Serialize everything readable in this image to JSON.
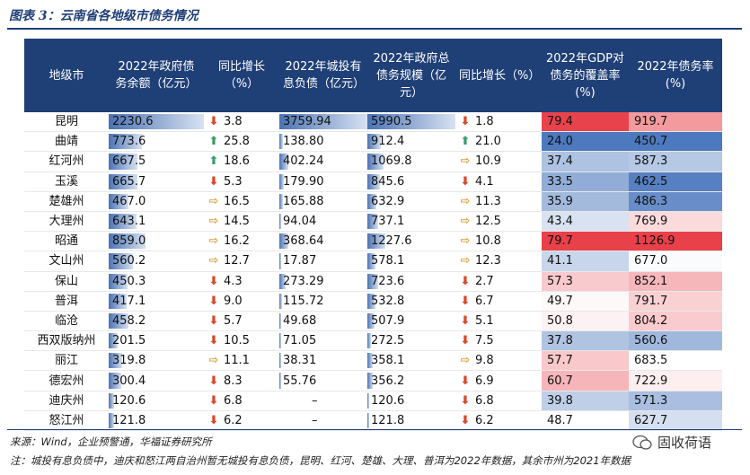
{
  "title": "图表 3：云南省各地级市债务情况",
  "headers": {
    "city": "地级市",
    "gov_debt": "2022年政府债务余额（亿元）",
    "gov_yoy": "同比增长（%）",
    "lgfv": "2022年城投有息负债（亿元）",
    "total": "2022年政府总债务规模（亿元）",
    "total_yoy": "同比增长（%）",
    "coverage": "2022年GDP对债务的覆盖率(%)",
    "ratio": "2022年债务率(%)"
  },
  "rows": [
    {
      "city": "昆明",
      "gov_debt": "2230.6",
      "gov_yoy": "3.8",
      "gov_dir": "down",
      "lgfv": "3759.94",
      "total": "5990.5",
      "total_yoy": "1.8",
      "total_dir": "down",
      "coverage": "79.4",
      "ratio": "919.7"
    },
    {
      "city": "曲靖",
      "gov_debt": "773.6",
      "gov_yoy": "25.8",
      "gov_dir": "up",
      "lgfv": "138.80",
      "total": "912.4",
      "total_yoy": "21.0",
      "total_dir": "up",
      "coverage": "24.0",
      "ratio": "450.7"
    },
    {
      "city": "红河州",
      "gov_debt": "667.5",
      "gov_yoy": "18.6",
      "gov_dir": "up",
      "lgfv": "402.24",
      "total": "1069.8",
      "total_yoy": "10.9",
      "total_dir": "flat",
      "coverage": "37.4",
      "ratio": "587.3"
    },
    {
      "city": "玉溪",
      "gov_debt": "665.7",
      "gov_yoy": "5.3",
      "gov_dir": "down",
      "lgfv": "179.90",
      "total": "845.6",
      "total_yoy": "4.1",
      "total_dir": "down",
      "coverage": "33.5",
      "ratio": "462.5"
    },
    {
      "city": "楚雄州",
      "gov_debt": "467.0",
      "gov_yoy": "16.5",
      "gov_dir": "flat",
      "lgfv": "165.88",
      "total": "632.9",
      "total_yoy": "11.3",
      "total_dir": "flat",
      "coverage": "35.9",
      "ratio": "486.3"
    },
    {
      "city": "大理州",
      "gov_debt": "643.1",
      "gov_yoy": "14.5",
      "gov_dir": "flat",
      "lgfv": "94.04",
      "total": "737.1",
      "total_yoy": "12.5",
      "total_dir": "flat",
      "coverage": "43.4",
      "ratio": "769.9"
    },
    {
      "city": "昭通",
      "gov_debt": "859.0",
      "gov_yoy": "16.2",
      "gov_dir": "flat",
      "lgfv": "368.64",
      "total": "1227.6",
      "total_yoy": "10.8",
      "total_dir": "flat",
      "coverage": "79.7",
      "ratio": "1126.9"
    },
    {
      "city": "文山州",
      "gov_debt": "560.2",
      "gov_yoy": "12.7",
      "gov_dir": "flat",
      "lgfv": "17.87",
      "total": "578.1",
      "total_yoy": "12.3",
      "total_dir": "flat",
      "coverage": "41.1",
      "ratio": "677.0"
    },
    {
      "city": "保山",
      "gov_debt": "450.3",
      "gov_yoy": "4.3",
      "gov_dir": "down",
      "lgfv": "273.29",
      "total": "723.6",
      "total_yoy": "2.7",
      "total_dir": "down",
      "coverage": "57.3",
      "ratio": "852.1"
    },
    {
      "city": "普洱",
      "gov_debt": "417.1",
      "gov_yoy": "9.0",
      "gov_dir": "down",
      "lgfv": "115.72",
      "total": "532.8",
      "total_yoy": "6.7",
      "total_dir": "down",
      "coverage": "49.7",
      "ratio": "791.7"
    },
    {
      "city": "临沧",
      "gov_debt": "458.2",
      "gov_yoy": "5.7",
      "gov_dir": "down",
      "lgfv": "49.68",
      "total": "507.9",
      "total_yoy": "5.1",
      "total_dir": "down",
      "coverage": "50.8",
      "ratio": "804.2"
    },
    {
      "city": "西双版纳州",
      "gov_debt": "201.5",
      "gov_yoy": "10.5",
      "gov_dir": "down",
      "lgfv": "71.05",
      "total": "272.5",
      "total_yoy": "7.5",
      "total_dir": "down",
      "coverage": "37.8",
      "ratio": "560.6"
    },
    {
      "city": "丽江",
      "gov_debt": "319.8",
      "gov_yoy": "11.1",
      "gov_dir": "flat",
      "lgfv": "38.31",
      "total": "358.1",
      "total_yoy": "9.8",
      "total_dir": "flat",
      "coverage": "57.7",
      "ratio": "683.5"
    },
    {
      "city": "德宏州",
      "gov_debt": "300.4",
      "gov_yoy": "8.3",
      "gov_dir": "down",
      "lgfv": "55.76",
      "total": "356.2",
      "total_yoy": "6.9",
      "total_dir": "down",
      "coverage": "60.7",
      "ratio": "722.9"
    },
    {
      "city": "迪庆州",
      "gov_debt": "120.6",
      "gov_yoy": "6.8",
      "gov_dir": "down",
      "lgfv": "–",
      "total": "120.6",
      "total_yoy": "6.8",
      "total_dir": "down",
      "coverage": "39.8",
      "ratio": "571.3"
    },
    {
      "city": "怒江州",
      "gov_debt": "121.8",
      "gov_yoy": "6.2",
      "gov_dir": "down",
      "lgfv": "–",
      "total": "121.8",
      "total_yoy": "6.2",
      "total_dir": "down",
      "coverage": "48.7",
      "ratio": "627.7"
    }
  ],
  "source": "来源：Wind，企业预警通，华福证券研究所",
  "note": "注：城投有息负债中，迪庆和怒江两自治州暂无城投有息负债，昆明、红河、楚雄、大理、普洱为2022年数据，其余市州为2021年数据",
  "watermark": "固收荷语",
  "colors": {
    "header": "#1f3f77",
    "down": "#d9482b",
    "up": "#3c9c6c",
    "flat": "#d8a13a",
    "heat_high": "#e8414a",
    "heat_low": "#4d79be"
  }
}
